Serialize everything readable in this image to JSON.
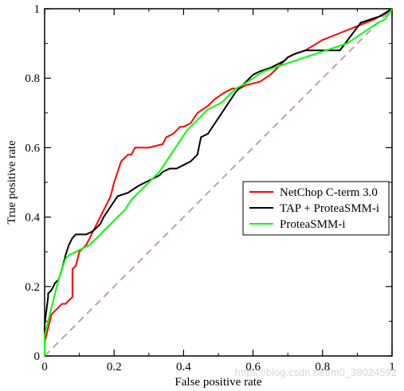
{
  "chart_data": {
    "type": "line",
    "title": "",
    "xlabel": "False positive rate",
    "ylabel": "True positive rate",
    "xlim": [
      0,
      1
    ],
    "ylim": [
      0,
      1
    ],
    "xticks": [
      "0",
      "0.2",
      "0.4",
      "0.6",
      "0.8",
      "1"
    ],
    "yticks": [
      "0",
      "0.2",
      "0.4",
      "0.6",
      "0.8",
      "1"
    ],
    "grid": false,
    "legend_position": "right-middle",
    "diagonal": {
      "color": "#bc8f8f",
      "style": "dashed",
      "x": [
        0,
        1
      ],
      "y": [
        0,
        1
      ]
    },
    "series": [
      {
        "name": "NetChop C-term 3.0",
        "color": "#ff0000",
        "x": [
          0.0,
          0.0,
          0.01,
          0.02,
          0.03,
          0.05,
          0.06,
          0.08,
          0.08,
          0.09,
          0.1,
          0.12,
          0.13,
          0.14,
          0.15,
          0.16,
          0.17,
          0.18,
          0.19,
          0.2,
          0.21,
          0.22,
          0.23,
          0.24,
          0.25,
          0.26,
          0.27,
          0.3,
          0.34,
          0.35,
          0.37,
          0.38,
          0.39,
          0.4,
          0.42,
          0.44,
          0.47,
          0.48,
          0.49,
          0.52,
          0.54,
          0.56,
          0.58,
          0.62,
          0.65,
          0.68,
          0.7,
          0.72,
          0.75,
          0.8,
          0.85,
          0.9,
          0.95,
          1.0
        ],
        "y": [
          0.0,
          0.04,
          0.08,
          0.12,
          0.13,
          0.15,
          0.15,
          0.17,
          0.25,
          0.26,
          0.3,
          0.32,
          0.34,
          0.36,
          0.38,
          0.4,
          0.42,
          0.44,
          0.46,
          0.5,
          0.53,
          0.56,
          0.57,
          0.58,
          0.58,
          0.6,
          0.6,
          0.6,
          0.61,
          0.63,
          0.64,
          0.65,
          0.66,
          0.66,
          0.67,
          0.7,
          0.72,
          0.73,
          0.74,
          0.76,
          0.77,
          0.77,
          0.78,
          0.79,
          0.81,
          0.84,
          0.86,
          0.87,
          0.88,
          0.91,
          0.93,
          0.95,
          0.97,
          1.0
        ]
      },
      {
        "name": "TAP + ProteaSMM-i",
        "color": "#000000",
        "x": [
          0.0,
          0.0,
          0.01,
          0.01,
          0.02,
          0.03,
          0.04,
          0.05,
          0.06,
          0.07,
          0.08,
          0.09,
          0.1,
          0.12,
          0.14,
          0.16,
          0.17,
          0.19,
          0.21,
          0.24,
          0.27,
          0.29,
          0.31,
          0.33,
          0.34,
          0.36,
          0.38,
          0.4,
          0.42,
          0.44,
          0.45,
          0.47,
          0.49,
          0.51,
          0.53,
          0.55,
          0.57,
          0.59,
          0.6,
          0.62,
          0.65,
          0.67,
          0.69,
          0.7,
          0.72,
          0.75,
          0.78,
          0.81,
          0.85,
          0.88,
          0.91,
          0.94,
          0.97,
          1.0
        ],
        "y": [
          0.0,
          0.09,
          0.17,
          0.18,
          0.19,
          0.21,
          0.22,
          0.25,
          0.29,
          0.32,
          0.34,
          0.35,
          0.35,
          0.35,
          0.36,
          0.38,
          0.4,
          0.43,
          0.46,
          0.47,
          0.49,
          0.5,
          0.51,
          0.52,
          0.53,
          0.54,
          0.54,
          0.55,
          0.56,
          0.58,
          0.63,
          0.64,
          0.67,
          0.7,
          0.73,
          0.76,
          0.78,
          0.8,
          0.81,
          0.82,
          0.83,
          0.84,
          0.85,
          0.86,
          0.87,
          0.88,
          0.88,
          0.88,
          0.88,
          0.92,
          0.96,
          0.97,
          0.98,
          1.0
        ]
      },
      {
        "name": "ProteaSMM-i",
        "color": "#00ff00",
        "x": [
          0.0,
          0.0,
          0.01,
          0.02,
          0.03,
          0.04,
          0.05,
          0.06,
          0.07,
          0.09,
          0.11,
          0.13,
          0.15,
          0.17,
          0.19,
          0.21,
          0.23,
          0.25,
          0.27,
          0.29,
          0.31,
          0.33,
          0.35,
          0.37,
          0.39,
          0.41,
          0.43,
          0.45,
          0.47,
          0.49,
          0.51,
          0.53,
          0.55,
          0.57,
          0.6,
          0.63,
          0.66,
          0.69,
          0.72,
          0.75,
          0.78,
          0.81,
          0.84,
          0.87,
          0.9,
          0.93,
          0.96,
          0.98,
          1.0
        ],
        "y": [
          0.0,
          0.06,
          0.1,
          0.14,
          0.18,
          0.22,
          0.25,
          0.28,
          0.29,
          0.3,
          0.31,
          0.32,
          0.34,
          0.36,
          0.38,
          0.4,
          0.42,
          0.45,
          0.47,
          0.49,
          0.51,
          0.53,
          0.56,
          0.59,
          0.62,
          0.65,
          0.67,
          0.69,
          0.71,
          0.72,
          0.73,
          0.75,
          0.77,
          0.78,
          0.8,
          0.82,
          0.83,
          0.84,
          0.85,
          0.86,
          0.87,
          0.88,
          0.89,
          0.9,
          0.92,
          0.94,
          0.96,
          0.97,
          1.0
        ]
      }
    ]
  },
  "watermark": "https://blog.csdn.net/m0_38024592"
}
